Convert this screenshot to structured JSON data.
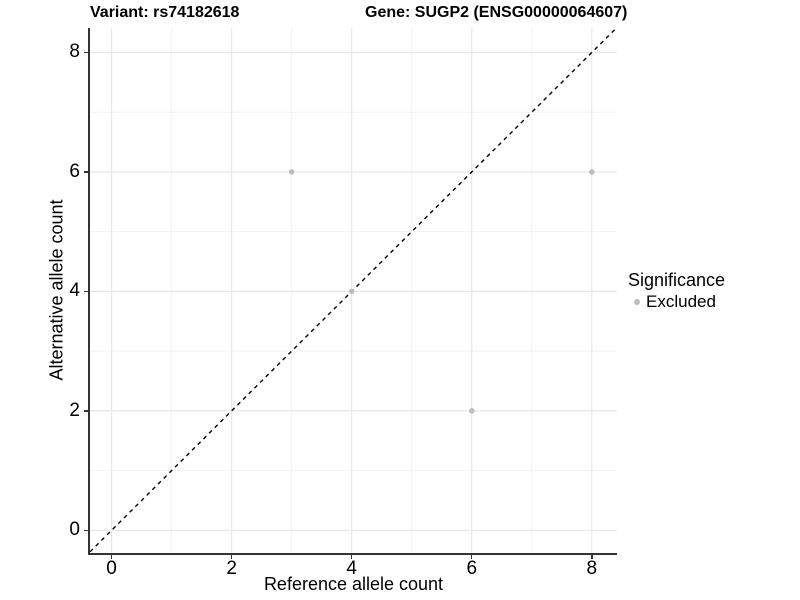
{
  "chart_data": {
    "type": "scatter",
    "title_left": "Variant: rs74182618",
    "title_right": "Gene: SUGP2 (ENSG00000064607)",
    "xlabel": "Reference allele count",
    "ylabel": "Alternative allele count",
    "xlim": [
      -0.36,
      8.42
    ],
    "ylim": [
      -0.38,
      8.41
    ],
    "x_ticks": [
      0,
      2,
      4,
      6,
      8
    ],
    "y_ticks": [
      0,
      2,
      4,
      6,
      8
    ],
    "minor_grid_x": [
      1,
      3,
      5,
      7
    ],
    "minor_grid_y": [
      1,
      3,
      5,
      7
    ],
    "grid": true,
    "series": [
      {
        "name": "Excluded",
        "color": "#bebebe",
        "points": [
          [
            3,
            6
          ],
          [
            4,
            4
          ],
          [
            6,
            2
          ],
          [
            8,
            6
          ]
        ]
      }
    ],
    "reference_line": {
      "shape": "y=x",
      "style": "dashed",
      "color": "#000000"
    },
    "legend": {
      "title": "Significance",
      "position": "right",
      "items": [
        {
          "label": "Excluded",
          "color": "#bebebe"
        }
      ]
    },
    "colors": {
      "axis_line": "#333333",
      "grid_major": "#e7e7e7",
      "grid_minor": "#f2f2f2",
      "text": "#000000"
    }
  }
}
